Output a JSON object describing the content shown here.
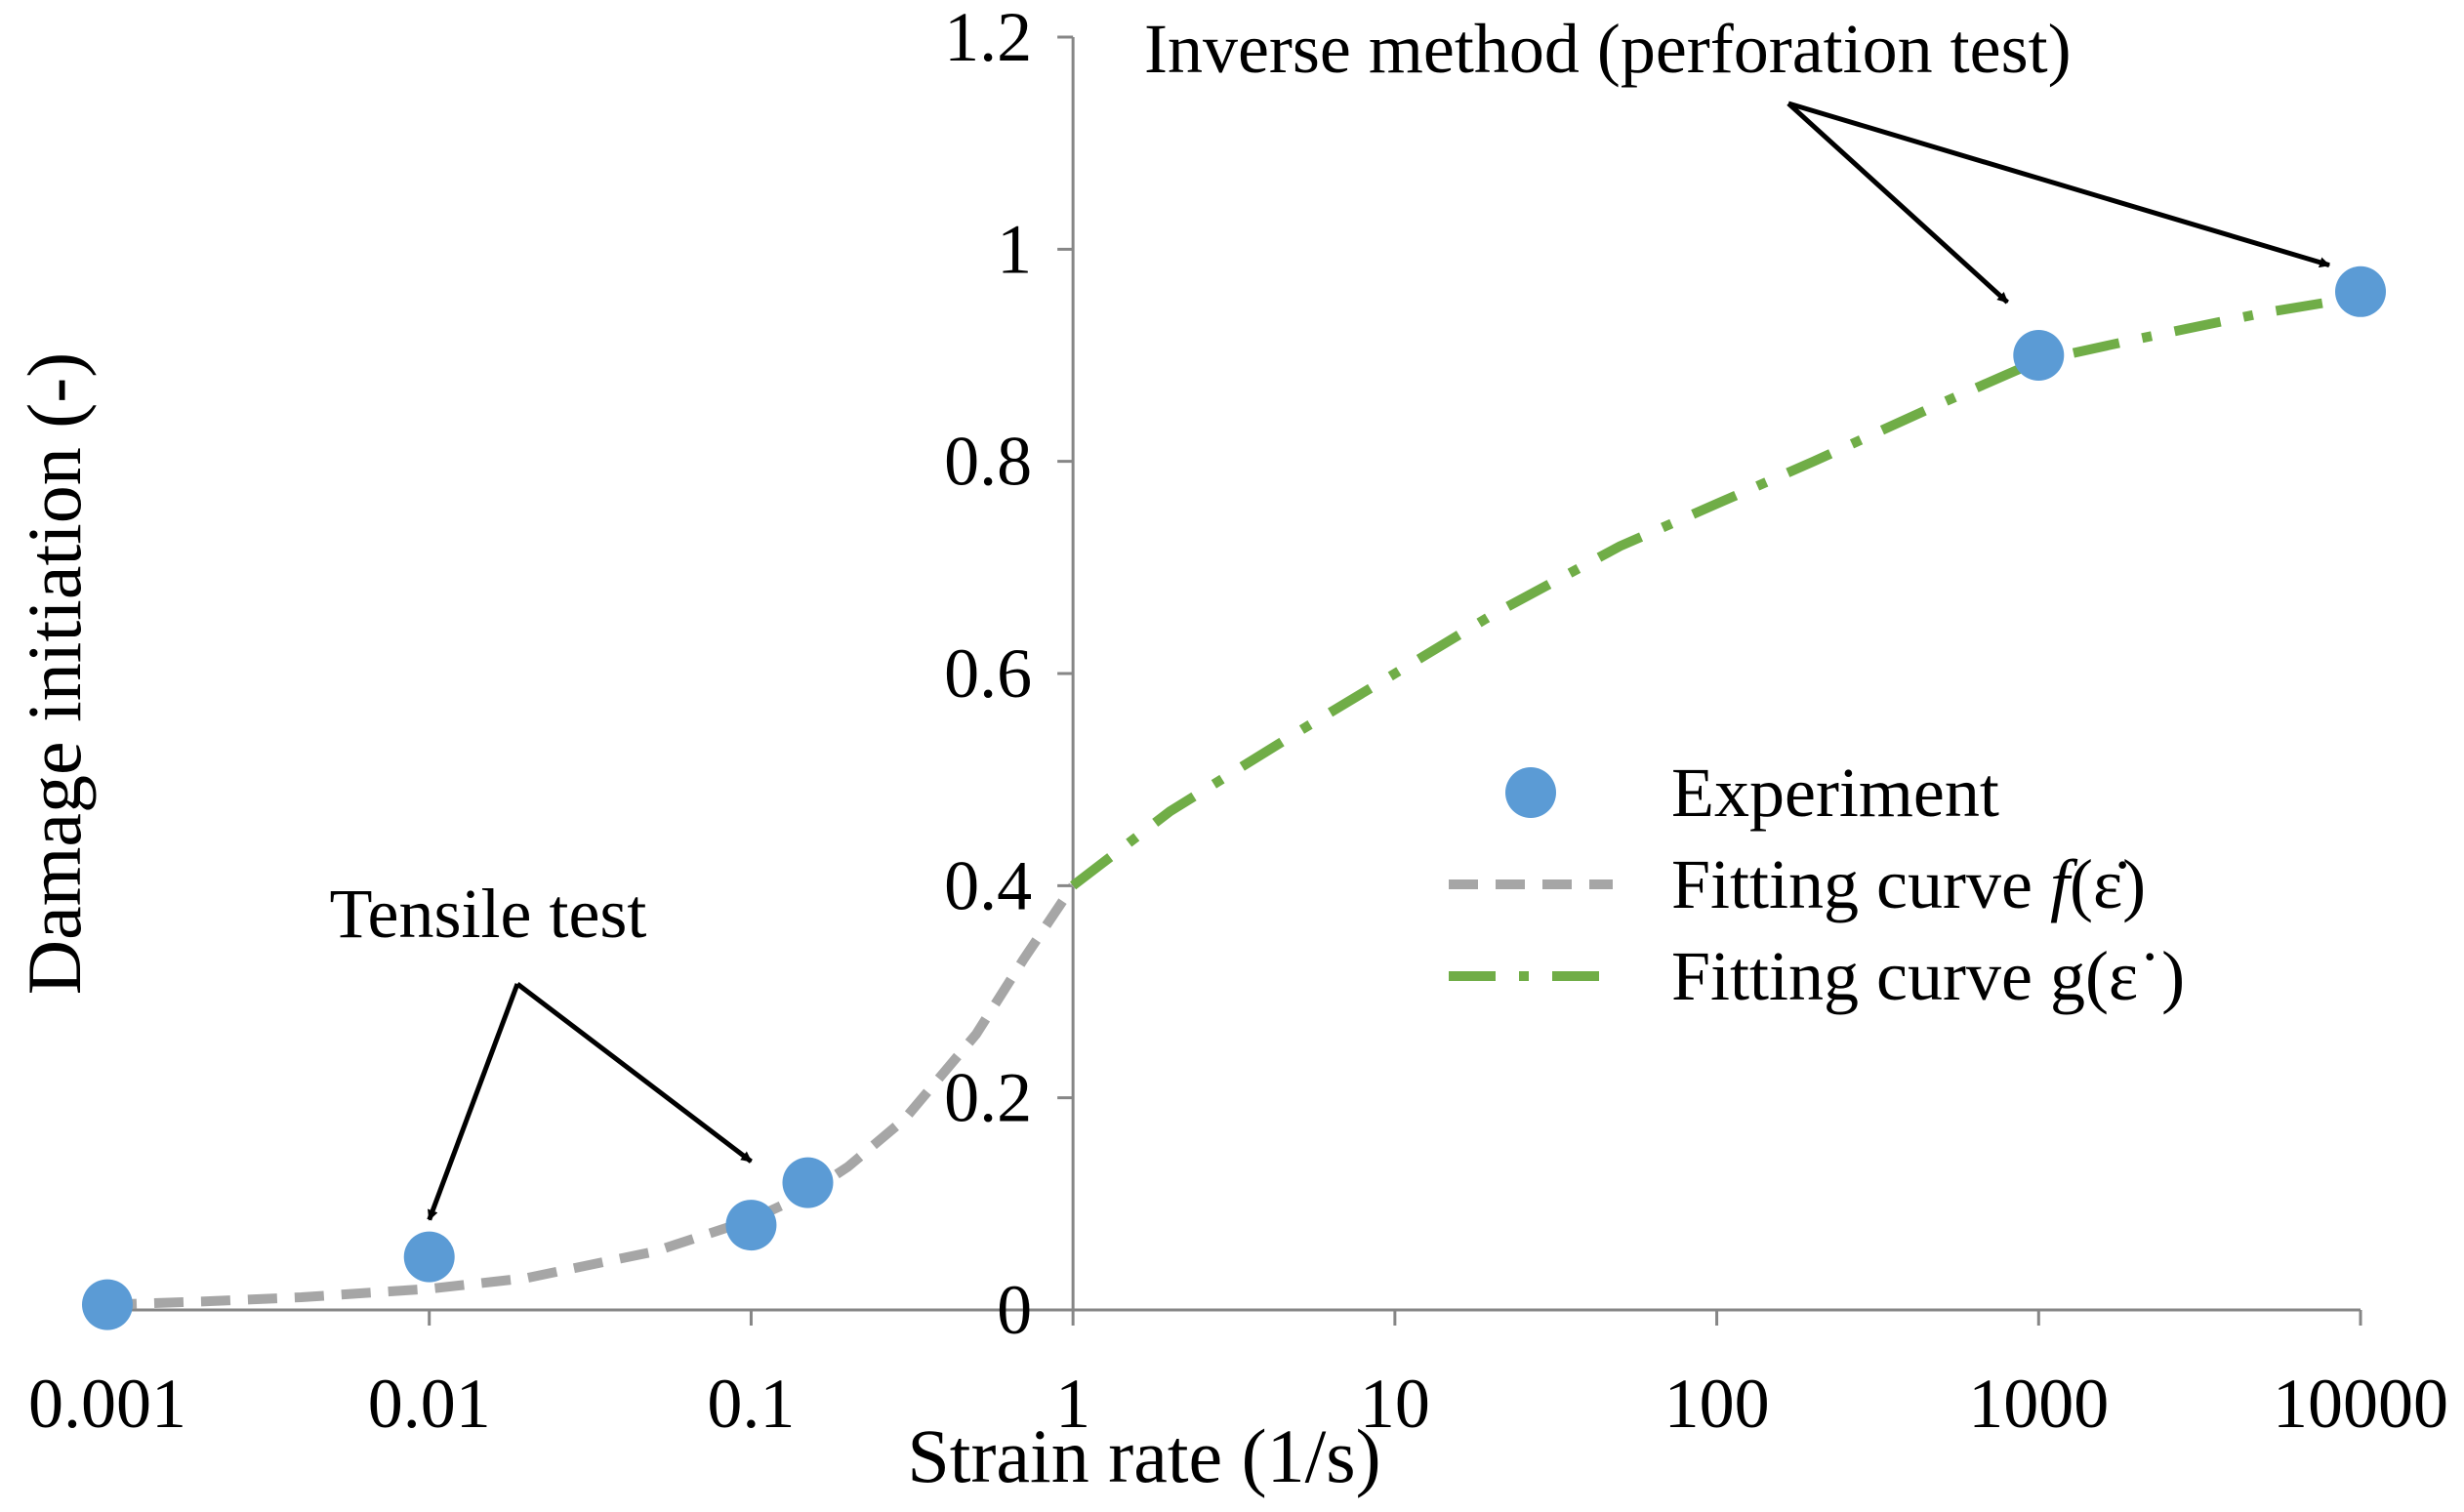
{
  "chart_data": {
    "type": "scatter",
    "title": "",
    "xlabel": "Strain rate (1/s)",
    "ylabel": "Damage initiation (-)",
    "xscale": "log",
    "xlim": [
      0.001,
      10000
    ],
    "ylim": [
      0,
      1.2
    ],
    "grid": false,
    "x_tick_values": [
      0.001,
      0.01,
      0.1,
      1,
      10,
      100,
      1000,
      10000
    ],
    "x_tick_labels": [
      "0.001",
      "0.01",
      "0.1",
      "1",
      "10",
      "100",
      "1000",
      "10000"
    ],
    "y_tick_values": [
      0,
      0.2,
      0.4,
      0.6,
      0.8,
      1,
      1.2
    ],
    "y_tick_labels": [
      "0",
      "0.2",
      "0.4",
      "0.6",
      "0.8",
      "1",
      "1.2"
    ],
    "y_axis_at_x": 1,
    "legend_position": "center-right",
    "series": [
      {
        "name": "Experiment",
        "kind": "marker",
        "color": "#5B9BD5",
        "x": [
          0.001,
          0.01,
          0.1,
          0.15,
          1000,
          10000
        ],
        "y": [
          0.005,
          0.05,
          0.08,
          0.12,
          0.9,
          0.96
        ]
      },
      {
        "name": "Fitting curve f(ε̇)",
        "legend_prefix": "Fitting curve ",
        "legend_func": "f",
        "legend_arg": "(ε̇)",
        "kind": "dashed",
        "color": "#A6A6A6",
        "x": [
          0.001,
          0.002,
          0.004,
          0.01,
          0.02,
          0.05,
          0.1,
          0.15,
          0.2,
          0.3,
          0.5,
          0.7,
          1
        ],
        "y": [
          0.005,
          0.008,
          0.012,
          0.02,
          0.03,
          0.055,
          0.085,
          0.11,
          0.135,
          0.18,
          0.26,
          0.33,
          0.4
        ]
      },
      {
        "name": "Fitting curve g(ε˙)",
        "legend_prefix": "Fitting curve ",
        "legend_func": "g",
        "legend_arg": "(ε˙)",
        "kind": "dashdot",
        "color": "#70AD47",
        "x": [
          1,
          2,
          5,
          10,
          20,
          50,
          100,
          200,
          500,
          1000,
          2000,
          5000,
          10000
        ],
        "y": [
          0.4,
          0.47,
          0.545,
          0.6,
          0.655,
          0.72,
          0.76,
          0.8,
          0.855,
          0.895,
          0.915,
          0.94,
          0.955
        ]
      }
    ],
    "annotations": [
      {
        "id": "tensile",
        "text": "Tensile test",
        "targets": [
          [
            0.01,
            0.085
          ],
          [
            0.1,
            0.14
          ]
        ]
      },
      {
        "id": "inverse",
        "text": "Inverse method (perforation test)",
        "targets": [
          [
            800,
            0.95
          ],
          [
            8000,
            0.985
          ]
        ]
      }
    ]
  }
}
